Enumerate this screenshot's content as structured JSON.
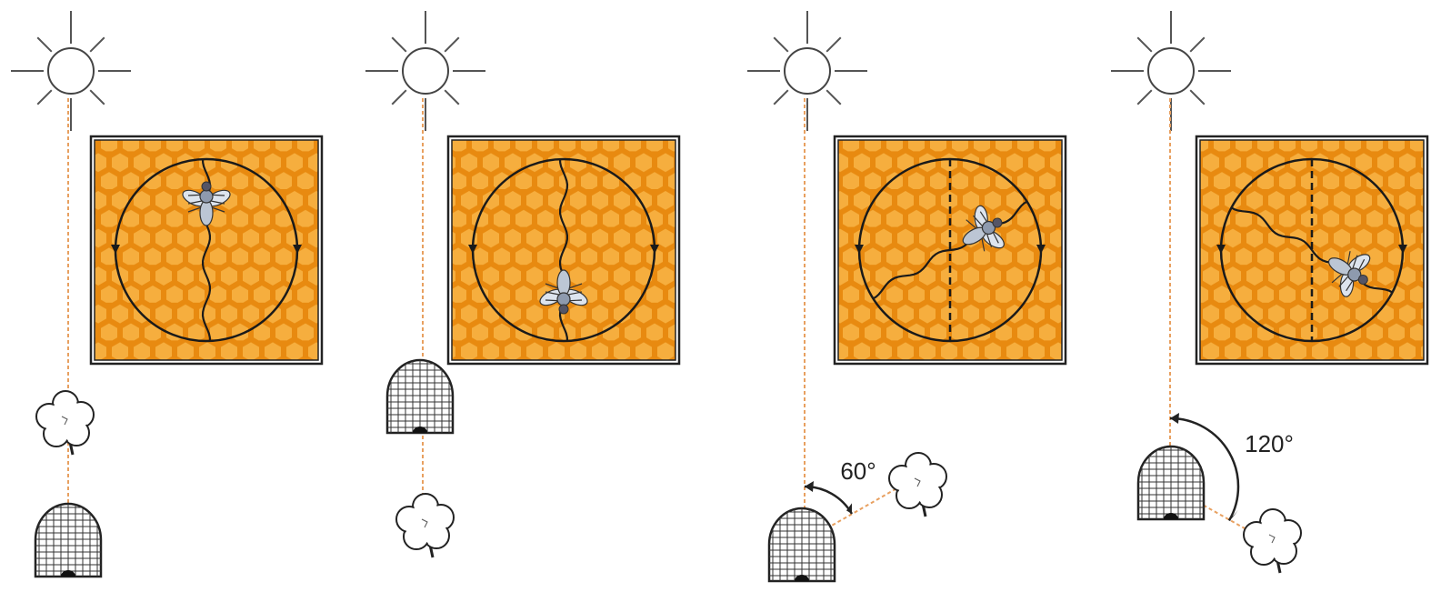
{
  "angle_labels": [
    "60°",
    "120°"
  ]
}
